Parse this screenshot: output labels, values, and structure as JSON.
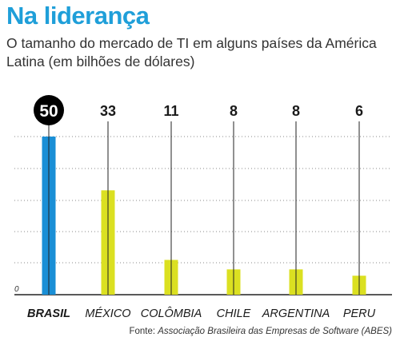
{
  "header": {
    "title": "Na liderança",
    "subtitle": "O tamanho do mercado de TI em alguns países da América Latina (em bilhões de dólares)"
  },
  "source": {
    "prefix": "Fonte: ",
    "name": "Associação Brasileira das Empresas de Software (ABES)"
  },
  "colors": {
    "highlight": "#1a8fd6",
    "bar": "#dbe021",
    "line": "#222222",
    "grid": "#888888",
    "badge": "#000000"
  },
  "chart_data": {
    "type": "bar",
    "title": "Na liderança",
    "subtitle": "O tamanho do mercado de TI em alguns países da América Latina (em bilhões de dólares)",
    "categories": [
      "BRASIL",
      "MÉXICO",
      "COLÔMBIA",
      "CHILE",
      "ARGENTINA",
      "PERU"
    ],
    "values": [
      50,
      33,
      11,
      8,
      8,
      6
    ],
    "labels": [
      "50",
      "33",
      "11",
      "8",
      "8",
      "6"
    ],
    "highlight": "BRASIL",
    "yaxis_label": "0",
    "ylim": [
      0,
      50
    ],
    "grid": true
  }
}
